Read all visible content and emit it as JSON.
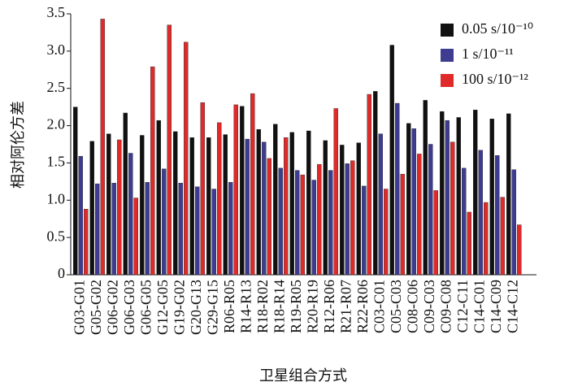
{
  "chart_data": {
    "type": "bar",
    "x_label": "卫星组合方式",
    "y_label": "相对阿伦方差",
    "categories": [
      "G03-G01",
      "G05-G02",
      "G06-G02",
      "G06-G03",
      "G06-G05",
      "G12-G05",
      "G19-G02",
      "G20-G13",
      "G29-G15",
      "R06-R05",
      "R14-R13",
      "R18-R02",
      "R18-R14",
      "R19-R05",
      "R20-R19",
      "R12-R06",
      "R21-R07",
      "R22-R06",
      "C03-C01",
      "C05-C03",
      "C08-C06",
      "C09-C03",
      "C09-C08",
      "C12-C11",
      "C14-C01",
      "C14-C09",
      "C14-C12"
    ],
    "series": [
      {
        "name": "0.05 s/10⁻¹⁰",
        "color": "#111111",
        "values": [
          2.25,
          1.79,
          1.89,
          2.17,
          1.87,
          2.07,
          1.92,
          1.84,
          1.84,
          1.88,
          2.26,
          1.95,
          2.02,
          1.91,
          1.93,
          1.8,
          1.74,
          1.77,
          2.46,
          3.08,
          2.03,
          2.34,
          2.19,
          2.11,
          2.21,
          2.09,
          2.16
        ]
      },
      {
        "name": "1 s/10⁻¹¹",
        "color": "#3d3c91",
        "values": [
          1.59,
          1.22,
          1.23,
          1.63,
          1.24,
          1.42,
          1.23,
          1.18,
          1.15,
          1.24,
          1.82,
          1.78,
          1.43,
          1.4,
          1.27,
          1.4,
          1.49,
          1.19,
          1.89,
          2.3,
          1.96,
          1.75,
          2.07,
          1.43,
          1.67,
          1.6,
          1.41
        ]
      },
      {
        "name": "100 s/10⁻¹²",
        "color": "#e02a2a",
        "values": [
          0.88,
          3.43,
          1.81,
          1.03,
          2.79,
          3.35,
          3.12,
          2.31,
          2.04,
          2.28,
          2.43,
          1.56,
          1.84,
          1.34,
          1.48,
          2.23,
          1.53,
          2.42,
          1.15,
          1.35,
          1.62,
          1.13,
          1.78,
          0.84,
          0.97,
          1.04,
          0.67
        ]
      }
    ],
    "ylim": [
      0,
      3.5
    ],
    "yticks": [
      0,
      0.5,
      {
        "value": 1,
        "label": "1.0"
      },
      1.5,
      {
        "value": 2,
        "label": "2.0"
      },
      2.5,
      {
        "value": 3,
        "label": "3.0"
      },
      3.5
    ],
    "legend": "top-right"
  }
}
